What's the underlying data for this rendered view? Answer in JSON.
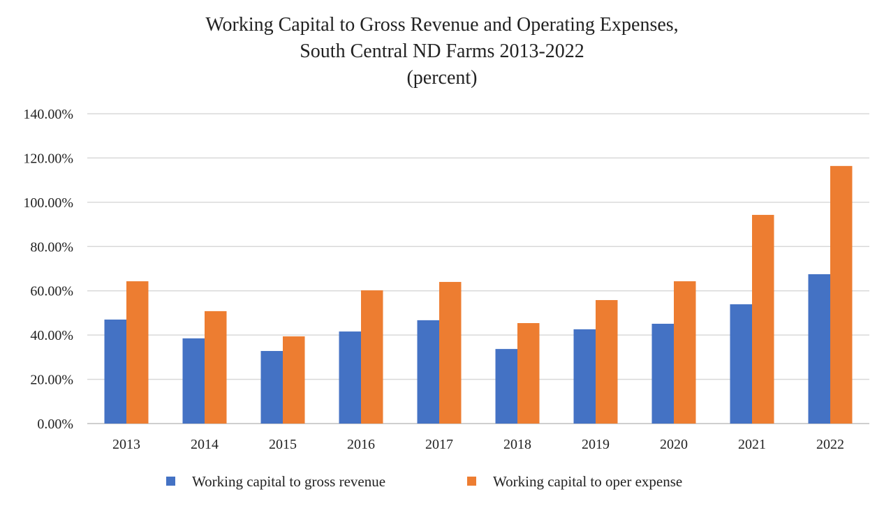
{
  "chart_data": {
    "type": "bar",
    "title": [
      "Working Capital to Gross Revenue and Operating Expenses,",
      "South Central ND Farms 2013-2022",
      "(percent)"
    ],
    "xlabel": "",
    "ylabel": "",
    "categories": [
      "2013",
      "2014",
      "2015",
      "2016",
      "2017",
      "2018",
      "2019",
      "2020",
      "2021",
      "2022"
    ],
    "series": [
      {
        "name": "Working capital to gross revenue",
        "color": "#4472C4",
        "values": [
          47.0,
          38.5,
          32.8,
          41.6,
          46.7,
          33.7,
          42.6,
          45.1,
          53.9,
          67.5
        ]
      },
      {
        "name": "Working capital to oper expense",
        "color": "#ED7D31",
        "values": [
          64.3,
          50.8,
          39.4,
          60.2,
          64.0,
          45.4,
          55.8,
          64.3,
          94.3,
          116.4
        ]
      }
    ],
    "ylim": [
      0,
      140
    ],
    "yticks": [
      "0.00%",
      "20.00%",
      "40.00%",
      "60.00%",
      "80.00%",
      "100.00%",
      "120.00%",
      "140.00%"
    ],
    "grid": true,
    "legend": "bottom"
  }
}
